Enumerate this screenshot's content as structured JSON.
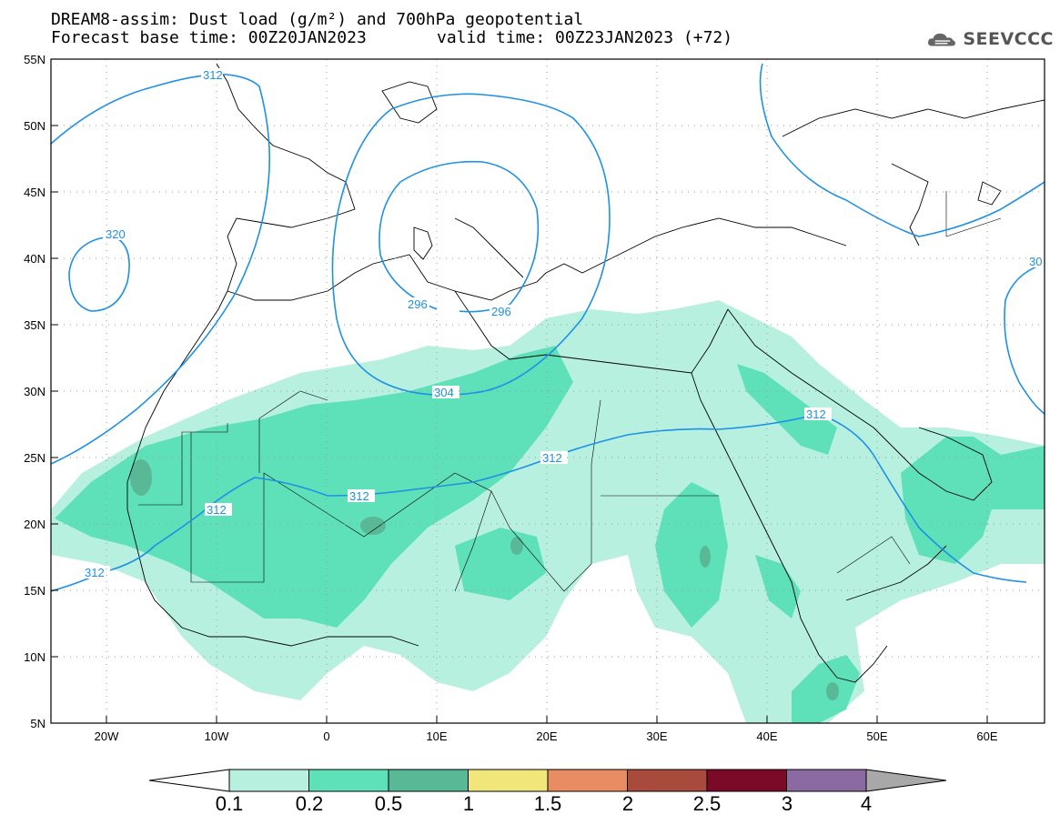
{
  "title": {
    "line1": "DREAM8-assim: Dust load (g/m²) and 700hPa geopotential",
    "line2_left": "Forecast base time: 00Z20JAN2023",
    "line2_right": "valid time: 00Z23JAN2023 (+72)"
  },
  "logo": {
    "text": "SEEVCCC",
    "icon": "cloud-logo-icon"
  },
  "axes": {
    "lat_ticks": [
      "55N",
      "50N",
      "45N",
      "40N",
      "35N",
      "30N",
      "25N",
      "20N",
      "15N",
      "10N",
      "5N"
    ],
    "lon_ticks": [
      "20W",
      "10W",
      "0",
      "10E",
      "20E",
      "30E",
      "40E",
      "50E",
      "60E"
    ]
  },
  "contour_labels": [
    "312",
    "320",
    "296",
    "296",
    "304",
    "312",
    "312",
    "312",
    "312",
    "312",
    "30"
  ],
  "colorbar": {
    "ticks": [
      "0.1",
      "0.2",
      "0.5",
      "1",
      "1.5",
      "2",
      "2.5",
      "3",
      "4"
    ],
    "colors": [
      "#b8f0e0",
      "#5ee0b8",
      "#59b896",
      "#f0e67a",
      "#e88c64",
      "#a84a3c",
      "#7a0a28",
      "#8a6aa0",
      "#a8a8a8"
    ]
  },
  "colors": {
    "dust_light": "#b8f0e0",
    "dust_medium": "#5ee0b8",
    "dust_dark": "#59b896",
    "contour": "#1e90e6"
  }
}
